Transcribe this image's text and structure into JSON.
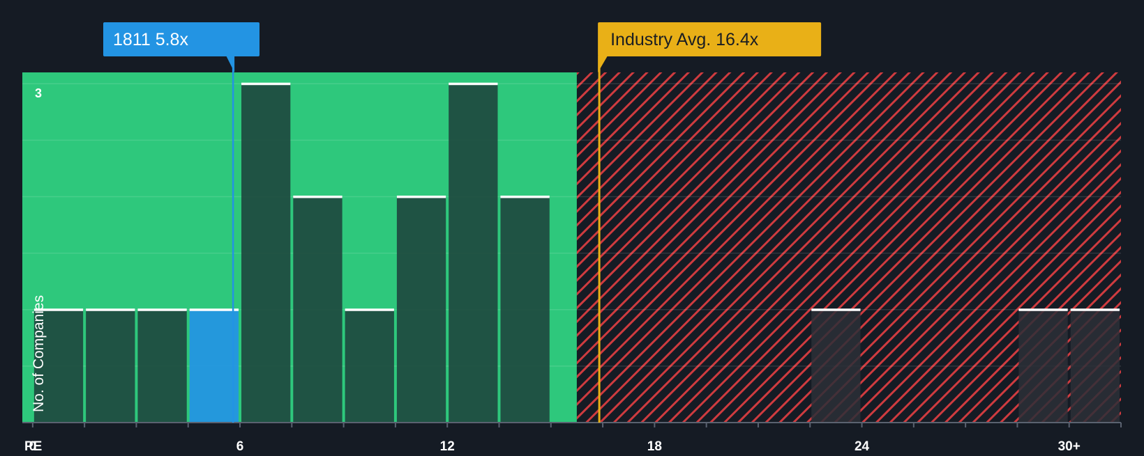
{
  "colors": {
    "background": "#151b24",
    "fair_zone": "#2ec87c",
    "expensive_zone": "#cf3b3f",
    "bar": "#1e4a3f",
    "bar_highlight": "#2394e3",
    "bar_outside": "#2c2f37",
    "company_marker": "#2394e3",
    "industry_marker": "#e9b017",
    "tick_text": "#ffffff"
  },
  "chart_data": {
    "type": "bar",
    "title": "",
    "xlabel": "PE",
    "ylabel": "No. of Companies",
    "xlim": [
      -0.3,
      31.5
    ],
    "ylim": [
      0,
      3.1
    ],
    "x_ticks": [
      0,
      6,
      12,
      18,
      24,
      30
    ],
    "x_tick_labels": [
      "0",
      "6",
      "12",
      "18",
      "24",
      "30+"
    ],
    "y_ticks": [
      3
    ],
    "y_tick_labels": [
      "3"
    ],
    "bin_width": 1.5,
    "bins": [
      {
        "start": 0,
        "end": 1.5,
        "value": 1
      },
      {
        "start": 1.5,
        "end": 3,
        "value": 1
      },
      {
        "start": 3,
        "end": 4.5,
        "value": 1
      },
      {
        "start": 4.5,
        "end": 6,
        "value": 1,
        "highlight": true
      },
      {
        "start": 6,
        "end": 7.5,
        "value": 3
      },
      {
        "start": 7.5,
        "end": 9,
        "value": 2
      },
      {
        "start": 9,
        "end": 10.5,
        "value": 1
      },
      {
        "start": 10.5,
        "end": 12,
        "value": 2
      },
      {
        "start": 12,
        "end": 13.5,
        "value": 3
      },
      {
        "start": 13.5,
        "end": 15,
        "value": 2
      },
      {
        "start": 22.5,
        "end": 24,
        "value": 1
      },
      {
        "start": 28.5,
        "end": 30,
        "value": 1
      },
      {
        "start": 30,
        "end": 31.5,
        "value": 1
      }
    ],
    "fair_zone_end": 15.75,
    "company": {
      "label": "1811 5.8x",
      "value": 5.8
    },
    "industry_avg": {
      "label": "Industry Avg. 16.4x",
      "value": 16.4
    },
    "grid": true
  }
}
